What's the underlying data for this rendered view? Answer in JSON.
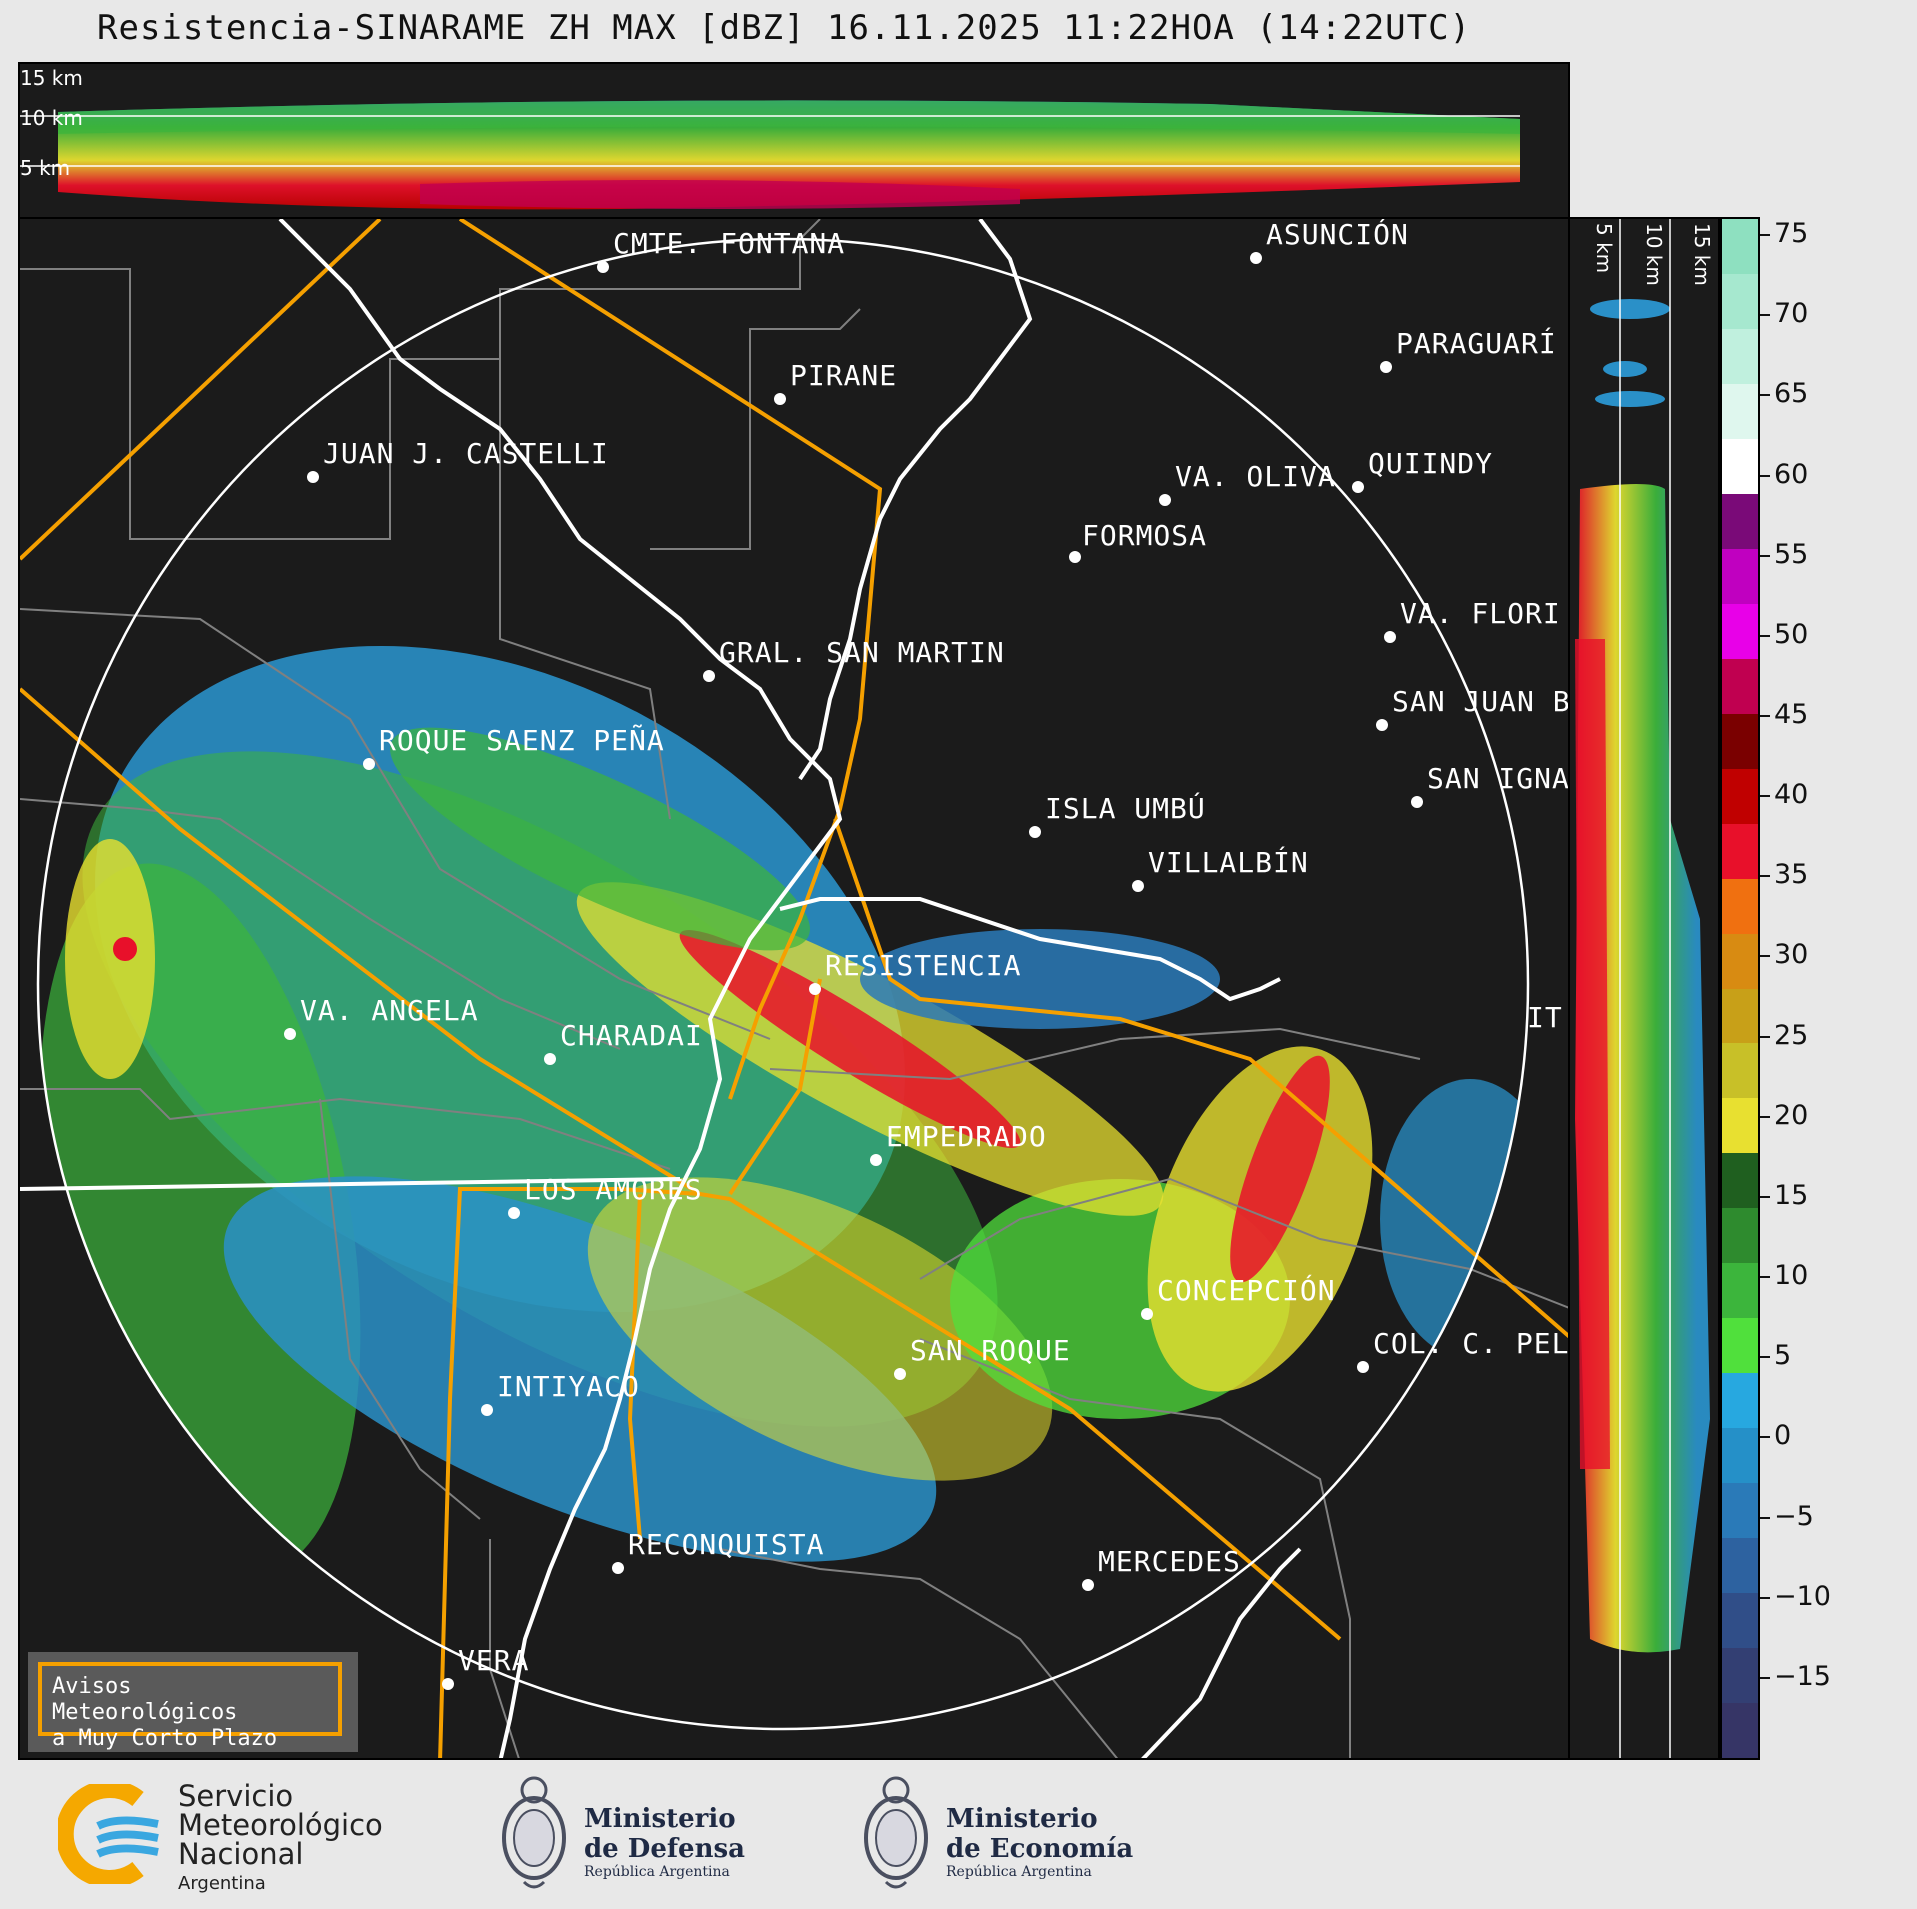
{
  "title": "Resistencia-SINARAME ZH MAX [dBZ] 16.11.2025 11:22HOA (14:22UTC)",
  "top_panel": {
    "height_labels": [
      "15 km",
      "10 km",
      "5 km"
    ]
  },
  "side_panel": {
    "height_labels": [
      "5 km",
      "10 km",
      "15 km"
    ]
  },
  "colorbar": {
    "unit": "dBZ",
    "ticks": [
      "75",
      "70",
      "65",
      "60",
      "55",
      "50",
      "45",
      "40",
      "35",
      "30",
      "25",
      "20",
      "15",
      "10",
      "5",
      "0",
      "−5",
      "−10",
      "−15"
    ],
    "colors": [
      "#8ee0c0",
      "#a6e8cf",
      "#c0f0de",
      "#dff7ee",
      "#ffffff",
      "#7a0a78",
      "#c000c0",
      "#e800e8",
      "#c00050",
      "#7a0000",
      "#c00000",
      "#e8102a",
      "#f07010",
      "#d88b12",
      "#c8a018",
      "#c8c028",
      "#e8e030",
      "#1f5f1f",
      "#2e8b2e",
      "#3cb53c",
      "#50e03c",
      "#27a8e0",
      "#2590c8",
      "#2a7ab8",
      "#2d62a0",
      "#304e88",
      "#333f73",
      "#363566"
    ],
    "color_stops_dbz": [
      76,
      60,
      58,
      50,
      42,
      30,
      18,
      -20
    ]
  },
  "cities": [
    {
      "name": "CMTE. FONTANA"
    },
    {
      "name": "ASUNCIÓN"
    },
    {
      "name": "PARAGUARÍ"
    },
    {
      "name": "PIRANE"
    },
    {
      "name": "JUAN J. CASTELLI"
    },
    {
      "name": "VA. OLIVA"
    },
    {
      "name": "QUIINDY"
    },
    {
      "name": "FORMOSA"
    },
    {
      "name": "VA. FLORI"
    },
    {
      "name": "GRAL. SAN MARTIN"
    },
    {
      "name": "SAN JUAN B"
    },
    {
      "name": "ROQUE SAENZ PEÑA"
    },
    {
      "name": "SAN IGNA"
    },
    {
      "name": "ISLA UMBÚ"
    },
    {
      "name": "VILLALBÍN"
    },
    {
      "name": "RESISTENCIA"
    },
    {
      "name": "VA. ANGELA"
    },
    {
      "name": "CHARADAI"
    },
    {
      "name": "IT"
    },
    {
      "name": "EMPEDRADO"
    },
    {
      "name": "LOS AMORES"
    },
    {
      "name": "CONCEPCIÓN"
    },
    {
      "name": "SAN ROQUE"
    },
    {
      "name": "COL. C. PEL"
    },
    {
      "name": "INTIYACO"
    },
    {
      "name": "RECONQUISTA"
    },
    {
      "name": "MERCEDES"
    },
    {
      "name": "VERA"
    }
  ],
  "legend": {
    "line1": "Avisos Meteorológicos",
    "line2": "a Muy Corto Plazo"
  },
  "footer": {
    "smn": [
      "Servicio",
      "Meteorológico",
      "Nacional",
      "Argentina"
    ],
    "defensa": [
      "Ministerio",
      "de Defensa",
      "República Argentina"
    ],
    "economia": [
      "Ministerio",
      "de Economía",
      "República Argentina"
    ]
  },
  "colors": {
    "border": "#ffffff",
    "roads": "#f5a000",
    "departments": "#808080",
    "background": "#1b1b1b"
  }
}
